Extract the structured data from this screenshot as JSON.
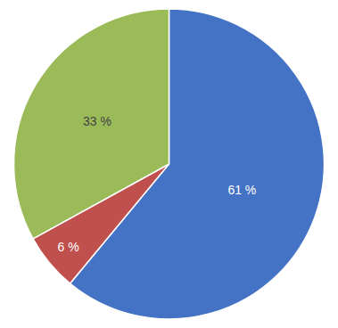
{
  "chart_data": {
    "type": "pie",
    "values": [
      61,
      6,
      33
    ],
    "value_labels": [
      "61 %",
      "6 %",
      "33 %"
    ],
    "colors": [
      "#4472C4",
      "#C0504D",
      "#9BBB59"
    ],
    "data_labels": true
  }
}
